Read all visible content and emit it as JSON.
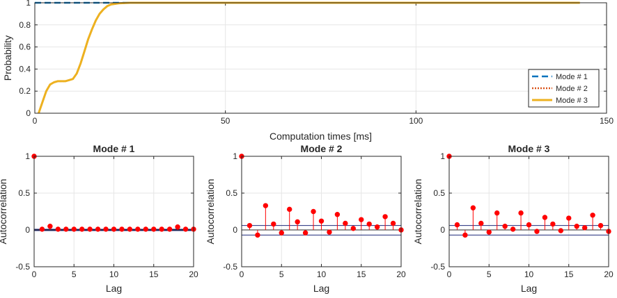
{
  "chart_data": [
    {
      "type": "line",
      "title": "",
      "xlabel": "Computation times [ms]",
      "ylabel": "Probability",
      "xlim": [
        0,
        150
      ],
      "ylim": [
        0,
        1
      ],
      "xticks": [
        0,
        50,
        100,
        150
      ],
      "yticks": [
        0,
        0.2,
        0.4,
        0.6,
        0.8,
        1
      ],
      "xtick_labels": [
        "0",
        "50",
        "100",
        "150"
      ],
      "ytick_labels": [
        "0",
        "0.2",
        "0.4",
        "0.6",
        "0.8",
        "1"
      ],
      "grid": true,
      "legend": "bottom-right",
      "series": [
        {
          "name": "Mode # 1",
          "style": "dashed",
          "color": "#0072BD",
          "x": [
            0,
            0.5,
            10,
            20,
            40,
            60,
            80,
            100,
            120,
            143
          ],
          "y": [
            1,
            1,
            1,
            1,
            1,
            1,
            1,
            1,
            1,
            1
          ]
        },
        {
          "name": "Mode # 2",
          "style": "dotted",
          "color": "#D95319",
          "x": [
            1,
            2,
            3,
            4,
            5,
            6,
            7,
            8,
            9,
            10,
            11,
            12,
            13,
            14,
            15,
            16,
            17,
            18,
            19,
            20,
            22,
            25,
            30,
            40,
            60,
            80,
            100,
            120,
            143
          ],
          "y": [
            0,
            0.1,
            0.2,
            0.26,
            0.28,
            0.29,
            0.29,
            0.29,
            0.3,
            0.31,
            0.36,
            0.45,
            0.56,
            0.67,
            0.76,
            0.84,
            0.9,
            0.94,
            0.97,
            0.985,
            0.995,
            1,
            1,
            1,
            1,
            1,
            1,
            1,
            1
          ]
        },
        {
          "name": "Mode # 3",
          "style": "solid",
          "color": "#EDB120",
          "x": [
            1,
            2,
            3,
            4,
            5,
            6,
            7,
            8,
            9,
            10,
            11,
            12,
            13,
            14,
            15,
            16,
            17,
            18,
            19,
            20,
            22,
            25,
            30,
            40,
            60,
            80,
            100,
            120,
            143
          ],
          "y": [
            0,
            0.1,
            0.2,
            0.26,
            0.28,
            0.29,
            0.29,
            0.29,
            0.3,
            0.31,
            0.36,
            0.45,
            0.56,
            0.67,
            0.76,
            0.84,
            0.9,
            0.94,
            0.97,
            0.985,
            0.995,
            1,
            1,
            1,
            1,
            1,
            1,
            1,
            1
          ]
        }
      ]
    },
    {
      "type": "stem",
      "title": "Mode # 1",
      "xlabel": "Lag",
      "ylabel": "Autocorrelation",
      "xlim": [
        0,
        20
      ],
      "ylim": [
        -0.5,
        1
      ],
      "xticks": [
        0,
        5,
        10,
        15,
        20
      ],
      "yticks": [
        -0.5,
        0,
        0.5,
        1
      ],
      "xtick_labels": [
        "0",
        "5",
        "10",
        "15",
        "20"
      ],
      "ytick_labels": [
        "-0.5",
        "0",
        "0.5",
        "1"
      ],
      "grid": true,
      "confidence_bounds": [
        0.01,
        -0.01
      ],
      "lags": [
        0,
        1,
        2,
        3,
        4,
        5,
        6,
        7,
        8,
        9,
        10,
        11,
        12,
        13,
        14,
        15,
        16,
        17,
        18,
        19,
        20
      ],
      "values": [
        1,
        0.01,
        0.05,
        0.01,
        0.01,
        0.01,
        0.01,
        0.01,
        0.01,
        0.01,
        0.01,
        0.01,
        0.01,
        0.01,
        0.01,
        0.01,
        0.01,
        0.01,
        0.04,
        0.01,
        0.01
      ],
      "stem_color": "#FF0000"
    },
    {
      "type": "stem",
      "title": "Mode # 2",
      "xlabel": "Lag",
      "ylabel": "Autocorrelation",
      "xlim": [
        0,
        20
      ],
      "ylim": [
        -0.5,
        1
      ],
      "xticks": [
        0,
        5,
        10,
        15,
        20
      ],
      "yticks": [
        -0.5,
        0,
        0.5,
        1
      ],
      "xtick_labels": [
        "0",
        "5",
        "10",
        "15",
        "20"
      ],
      "ytick_labels": [
        "-0.5",
        "0",
        "0.5",
        "1"
      ],
      "grid": true,
      "confidence_bounds": [
        0.06,
        -0.07
      ],
      "lags": [
        0,
        1,
        2,
        3,
        4,
        5,
        6,
        7,
        8,
        9,
        10,
        11,
        12,
        13,
        14,
        15,
        16,
        17,
        18,
        19,
        20
      ],
      "values": [
        1,
        0.06,
        -0.07,
        0.33,
        0.08,
        -0.04,
        0.28,
        0.11,
        -0.04,
        0.25,
        0.12,
        -0.03,
        0.21,
        0.09,
        0.02,
        0.14,
        0.08,
        0.04,
        0.18,
        0.09,
        0.0
      ],
      "stem_color": "#FF0000"
    },
    {
      "type": "stem",
      "title": "Mode # 3",
      "xlabel": "Lag",
      "ylabel": "Autocorrelation",
      "xlim": [
        0,
        20
      ],
      "ylim": [
        -0.5,
        1
      ],
      "xticks": [
        0,
        5,
        10,
        15,
        20
      ],
      "yticks": [
        -0.5,
        0,
        0.5,
        1
      ],
      "xtick_labels": [
        "0",
        "5",
        "10",
        "15",
        "20"
      ],
      "ytick_labels": [
        "-0.5",
        "0",
        "0.5",
        "1"
      ],
      "grid": true,
      "confidence_bounds": [
        0.06,
        -0.07
      ],
      "lags": [
        0,
        1,
        2,
        3,
        4,
        5,
        6,
        7,
        8,
        9,
        10,
        11,
        12,
        13,
        14,
        15,
        16,
        17,
        18,
        19,
        20
      ],
      "values": [
        1,
        0.07,
        -0.07,
        0.3,
        0.09,
        -0.03,
        0.23,
        0.05,
        0.01,
        0.23,
        0.07,
        -0.02,
        0.17,
        0.08,
        -0.01,
        0.16,
        0.05,
        0.03,
        0.2,
        0.06,
        -0.02
      ],
      "stem_color": "#FF0000"
    }
  ]
}
